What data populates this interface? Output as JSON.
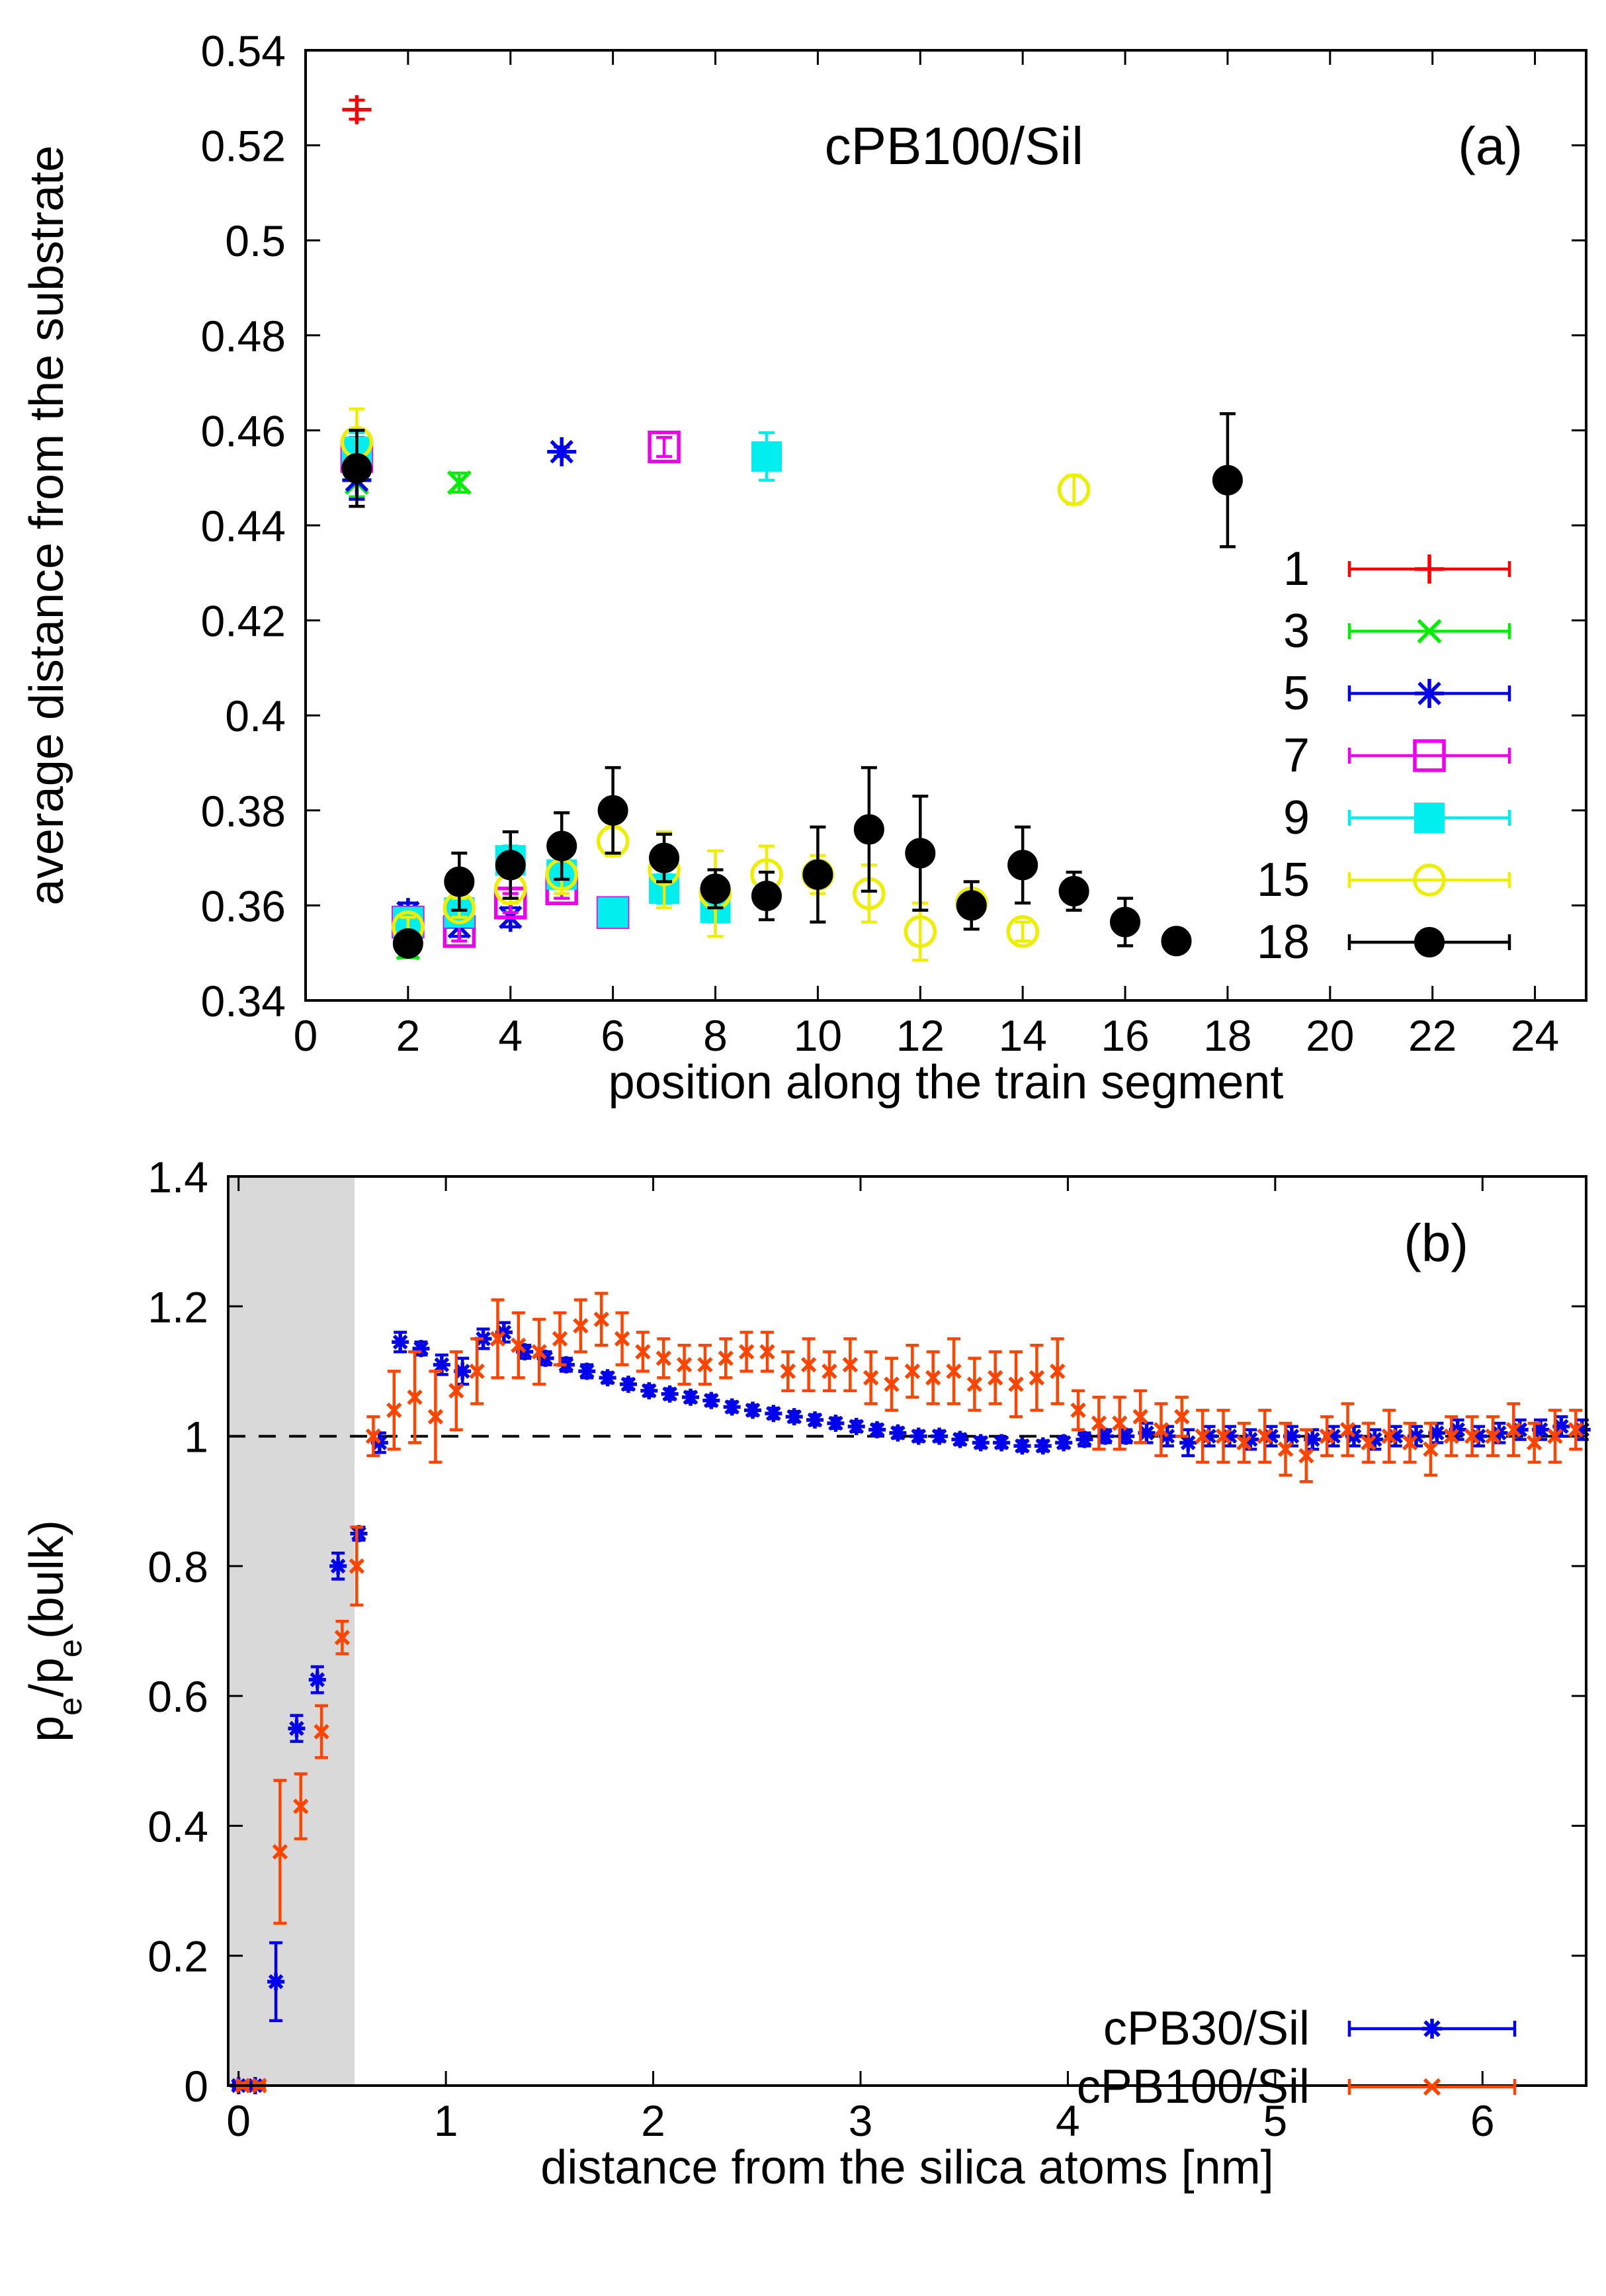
{
  "chart_data": [
    {
      "type": "scatter",
      "panel_label": "(a)",
      "annotation": "cPB100/Sil",
      "xlabel": "position along the train segment",
      "ylabel": "average distance from the substrate",
      "xlim": [
        0,
        25
      ],
      "ylim": [
        0.34,
        0.54
      ],
      "xticks": [
        0,
        2,
        4,
        6,
        8,
        10,
        12,
        14,
        16,
        18,
        20,
        22,
        24
      ],
      "yticks": [
        0.34,
        0.36,
        0.38,
        0.4,
        0.42,
        0.44,
        0.46,
        0.48,
        0.5,
        0.52,
        0.54
      ],
      "ytick_labels": [
        "0.34",
        "0.36",
        "0.38",
        "0.4",
        "0.42",
        "0.44",
        "0.46",
        "0.48",
        "0.5",
        "0.52",
        "0.54"
      ],
      "legend_position": "right",
      "series": [
        {
          "name": "1",
          "color": "#ff0000",
          "marker": "plus",
          "x": [
            1
          ],
          "y": [
            0.5275
          ],
          "err": [
            0.002
          ]
        },
        {
          "name": "3",
          "color": "#00ee00",
          "marker": "cross",
          "x": [
            1,
            2,
            3
          ],
          "y": [
            0.449,
            0.351,
            0.449
          ],
          "err": [
            0.003,
            0.002,
            0.002
          ]
        },
        {
          "name": "5",
          "color": "#0000ee",
          "marker": "star",
          "x": [
            1,
            2,
            3,
            4,
            5
          ],
          "y": [
            0.4495,
            0.3585,
            0.3555,
            0.3575,
            0.4555
          ],
          "err": [
            0.004,
            0.002,
            0.002,
            0.002,
            0.001
          ]
        },
        {
          "name": "7",
          "color": "#ee00ee",
          "marker": "square",
          "x": [
            1,
            2,
            3,
            4,
            5,
            6,
            7
          ],
          "y": [
            0.4545,
            0.3565,
            0.3545,
            0.3605,
            0.3635,
            0.3585,
            0.4565
          ],
          "err": [
            0.004,
            0.002,
            0.002,
            0.002,
            0.002,
            0.001,
            0.002
          ]
        },
        {
          "name": "9",
          "color": "#00eeee",
          "marker": "filled-square",
          "x": [
            1,
            2,
            3,
            4,
            5,
            6,
            7,
            8,
            9
          ],
          "y": [
            0.4555,
            0.3565,
            0.3585,
            0.3695,
            0.3665,
            0.3585,
            0.3635,
            0.3595,
            0.4545
          ],
          "err": [
            0.004,
            0.002,
            0.002,
            0.003,
            0.003,
            0.002,
            0.003,
            0.003,
            0.005
          ]
        },
        {
          "name": "15",
          "color": "#eeee00",
          "marker": "circle",
          "x": [
            1,
            2,
            3,
            4,
            5,
            6,
            7,
            8,
            9,
            10,
            11,
            12,
            13,
            14,
            15
          ],
          "y": [
            0.4575,
            0.3555,
            0.3595,
            0.3635,
            0.3665,
            0.3735,
            0.3675,
            0.3625,
            0.3665,
            0.3665,
            0.3625,
            0.3545,
            0.3605,
            0.3545,
            0.4475
          ],
          "err": [
            0.007,
            0.002,
            0.002,
            0.003,
            0.004,
            0.003,
            0.008,
            0.009,
            0.006,
            0.004,
            0.006,
            0.006,
            0.002,
            0.002,
            0.003
          ]
        },
        {
          "name": "18",
          "color": "#000000",
          "marker": "filled-circle",
          "x": [
            1,
            2,
            3,
            4,
            5,
            6,
            7,
            8,
            9,
            10,
            11,
            12,
            13,
            14,
            15,
            16,
            17,
            18
          ],
          "y": [
            0.452,
            0.352,
            0.365,
            0.3685,
            0.3725,
            0.38,
            0.37,
            0.3635,
            0.362,
            0.3665,
            0.376,
            0.371,
            0.36,
            0.3685,
            0.363,
            0.3565,
            0.3525,
            0.4495
          ],
          "err": [
            0.008,
            0.002,
            0.006,
            0.007,
            0.007,
            0.009,
            0.005,
            0.004,
            0.005,
            0.01,
            0.013,
            0.012,
            0.005,
            0.008,
            0.004,
            0.005,
            0.002,
            0.014
          ]
        }
      ]
    },
    {
      "type": "scatter",
      "panel_label": "(b)",
      "xlabel": "distance from the silica atoms [nm]",
      "ylabel_parts": [
        "p",
        "e",
        "/p",
        "e",
        "(bulk)"
      ],
      "xlim": [
        -0.05,
        6.5
      ],
      "ylim": [
        0,
        1.4
      ],
      "xticks": [
        0,
        1,
        2,
        3,
        4,
        5,
        6
      ],
      "yticks": [
        0,
        0.2,
        0.4,
        0.6,
        0.8,
        1,
        1.2,
        1.4
      ],
      "ytick_labels": [
        "0",
        "0.2",
        "0.4",
        "0.6",
        "0.8",
        "1",
        "1.2",
        "1.4"
      ],
      "shaded_region": [
        -0.05,
        0.56
      ],
      "reference_line": 1,
      "legend_position": "bottom-right",
      "series": [
        {
          "name": "cPB30/Sil",
          "color": "#0000ee",
          "marker": "star",
          "x": [
            0.0,
            0.08,
            0.18,
            0.28,
            0.38,
            0.48,
            0.58,
            0.68,
            0.78,
            0.88,
            0.98,
            1.08,
            1.18,
            1.28,
            1.38,
            1.48,
            1.58,
            1.68,
            1.78,
            1.88,
            1.98,
            2.08,
            2.18,
            2.28,
            2.38,
            2.48,
            2.58,
            2.68,
            2.78,
            2.88,
            2.98,
            3.08,
            3.18,
            3.28,
            3.38,
            3.48,
            3.58,
            3.68,
            3.78,
            3.88,
            3.98,
            4.08,
            4.18,
            4.28,
            4.38,
            4.48,
            4.58,
            4.68,
            4.78,
            4.88,
            4.98,
            5.08,
            5.18,
            5.28,
            5.38,
            5.48,
            5.58,
            5.68,
            5.78,
            5.88,
            5.98,
            6.08,
            6.18,
            6.28,
            6.38,
            6.48
          ],
          "y": [
            0,
            0,
            0.16,
            0.55,
            0.625,
            0.8,
            0.85,
            0.99,
            1.145,
            1.135,
            1.11,
            1.1,
            1.15,
            1.16,
            1.13,
            1.12,
            1.11,
            1.1,
            1.09,
            1.08,
            1.07,
            1.065,
            1.06,
            1.055,
            1.045,
            1.04,
            1.035,
            1.03,
            1.025,
            1.02,
            1.015,
            1.01,
            1.005,
            1.0,
            1.0,
            0.995,
            0.99,
            0.99,
            0.985,
            0.985,
            0.99,
            0.995,
            1.0,
            1.0,
            1.005,
            1.0,
            0.99,
            1.0,
            1.0,
            0.995,
            1.0,
            1.0,
            0.995,
            1.0,
            1.0,
            0.995,
            1.0,
            1.0,
            1.005,
            1.01,
            1.0,
            1.005,
            1.01,
            1.01,
            1.015,
            1.01
          ],
          "err": [
            0.004,
            0.004,
            0.06,
            0.02,
            0.02,
            0.02,
            0.01,
            0.015,
            0.015,
            0.01,
            0.015,
            0.02,
            0.015,
            0.015,
            0.01,
            0.01,
            0.01,
            0.01,
            0.008,
            0.008,
            0.008,
            0.008,
            0.008,
            0.008,
            0.008,
            0.008,
            0.008,
            0.008,
            0.008,
            0.008,
            0.008,
            0.008,
            0.008,
            0.008,
            0.008,
            0.008,
            0.008,
            0.008,
            0.008,
            0.008,
            0.008,
            0.01,
            0.01,
            0.01,
            0.015,
            0.015,
            0.02,
            0.015,
            0.015,
            0.015,
            0.015,
            0.015,
            0.015,
            0.015,
            0.015,
            0.015,
            0.015,
            0.015,
            0.015,
            0.015,
            0.015,
            0.015,
            0.015,
            0.015,
            0.015,
            0.015
          ]
        },
        {
          "name": "cPB100/Sil",
          "color": "#ff4400",
          "marker": "cross",
          "x": [
            0.02,
            0.1,
            0.2,
            0.3,
            0.4,
            0.5,
            0.57,
            0.65,
            0.75,
            0.85,
            0.95,
            1.05,
            1.15,
            1.25,
            1.35,
            1.45,
            1.55,
            1.65,
            1.75,
            1.85,
            1.95,
            2.05,
            2.15,
            2.25,
            2.35,
            2.45,
            2.55,
            2.65,
            2.75,
            2.85,
            2.95,
            3.05,
            3.15,
            3.25,
            3.35,
            3.45,
            3.55,
            3.65,
            3.75,
            3.85,
            3.95,
            4.05,
            4.15,
            4.25,
            4.35,
            4.45,
            4.55,
            4.65,
            4.75,
            4.85,
            4.95,
            5.05,
            5.15,
            5.25,
            5.35,
            5.45,
            5.55,
            5.65,
            5.75,
            5.85,
            5.95,
            6.05,
            6.15,
            6.25,
            6.35,
            6.45
          ],
          "y": [
            0,
            0,
            0.36,
            0.43,
            0.545,
            0.69,
            0.8,
            1.0,
            1.04,
            1.06,
            1.03,
            1.07,
            1.1,
            1.15,
            1.14,
            1.13,
            1.15,
            1.17,
            1.18,
            1.15,
            1.13,
            1.12,
            1.11,
            1.11,
            1.12,
            1.13,
            1.13,
            1.1,
            1.11,
            1.1,
            1.11,
            1.09,
            1.08,
            1.1,
            1.09,
            1.1,
            1.08,
            1.09,
            1.08,
            1.09,
            1.1,
            1.04,
            1.02,
            1.02,
            1.03,
            1.01,
            1.03,
            1.0,
            1.0,
            0.99,
            1.0,
            0.98,
            0.97,
            1.0,
            1.01,
            0.99,
            1.0,
            0.99,
            0.98,
            1.0,
            1.0,
            1.0,
            1.01,
            0.99,
            1.0,
            1.01
          ],
          "err": [
            0.004,
            0.004,
            0.11,
            0.05,
            0.04,
            0.025,
            0.06,
            0.03,
            0.06,
            0.07,
            0.07,
            0.06,
            0.05,
            0.06,
            0.05,
            0.05,
            0.04,
            0.04,
            0.04,
            0.04,
            0.03,
            0.03,
            0.03,
            0.03,
            0.03,
            0.03,
            0.03,
            0.03,
            0.04,
            0.03,
            0.04,
            0.04,
            0.04,
            0.04,
            0.04,
            0.05,
            0.04,
            0.04,
            0.05,
            0.05,
            0.05,
            0.03,
            0.04,
            0.04,
            0.04,
            0.04,
            0.03,
            0.04,
            0.04,
            0.03,
            0.04,
            0.04,
            0.04,
            0.03,
            0.04,
            0.03,
            0.04,
            0.03,
            0.04,
            0.03,
            0.03,
            0.03,
            0.04,
            0.03,
            0.04,
            0.03
          ]
        }
      ]
    }
  ]
}
